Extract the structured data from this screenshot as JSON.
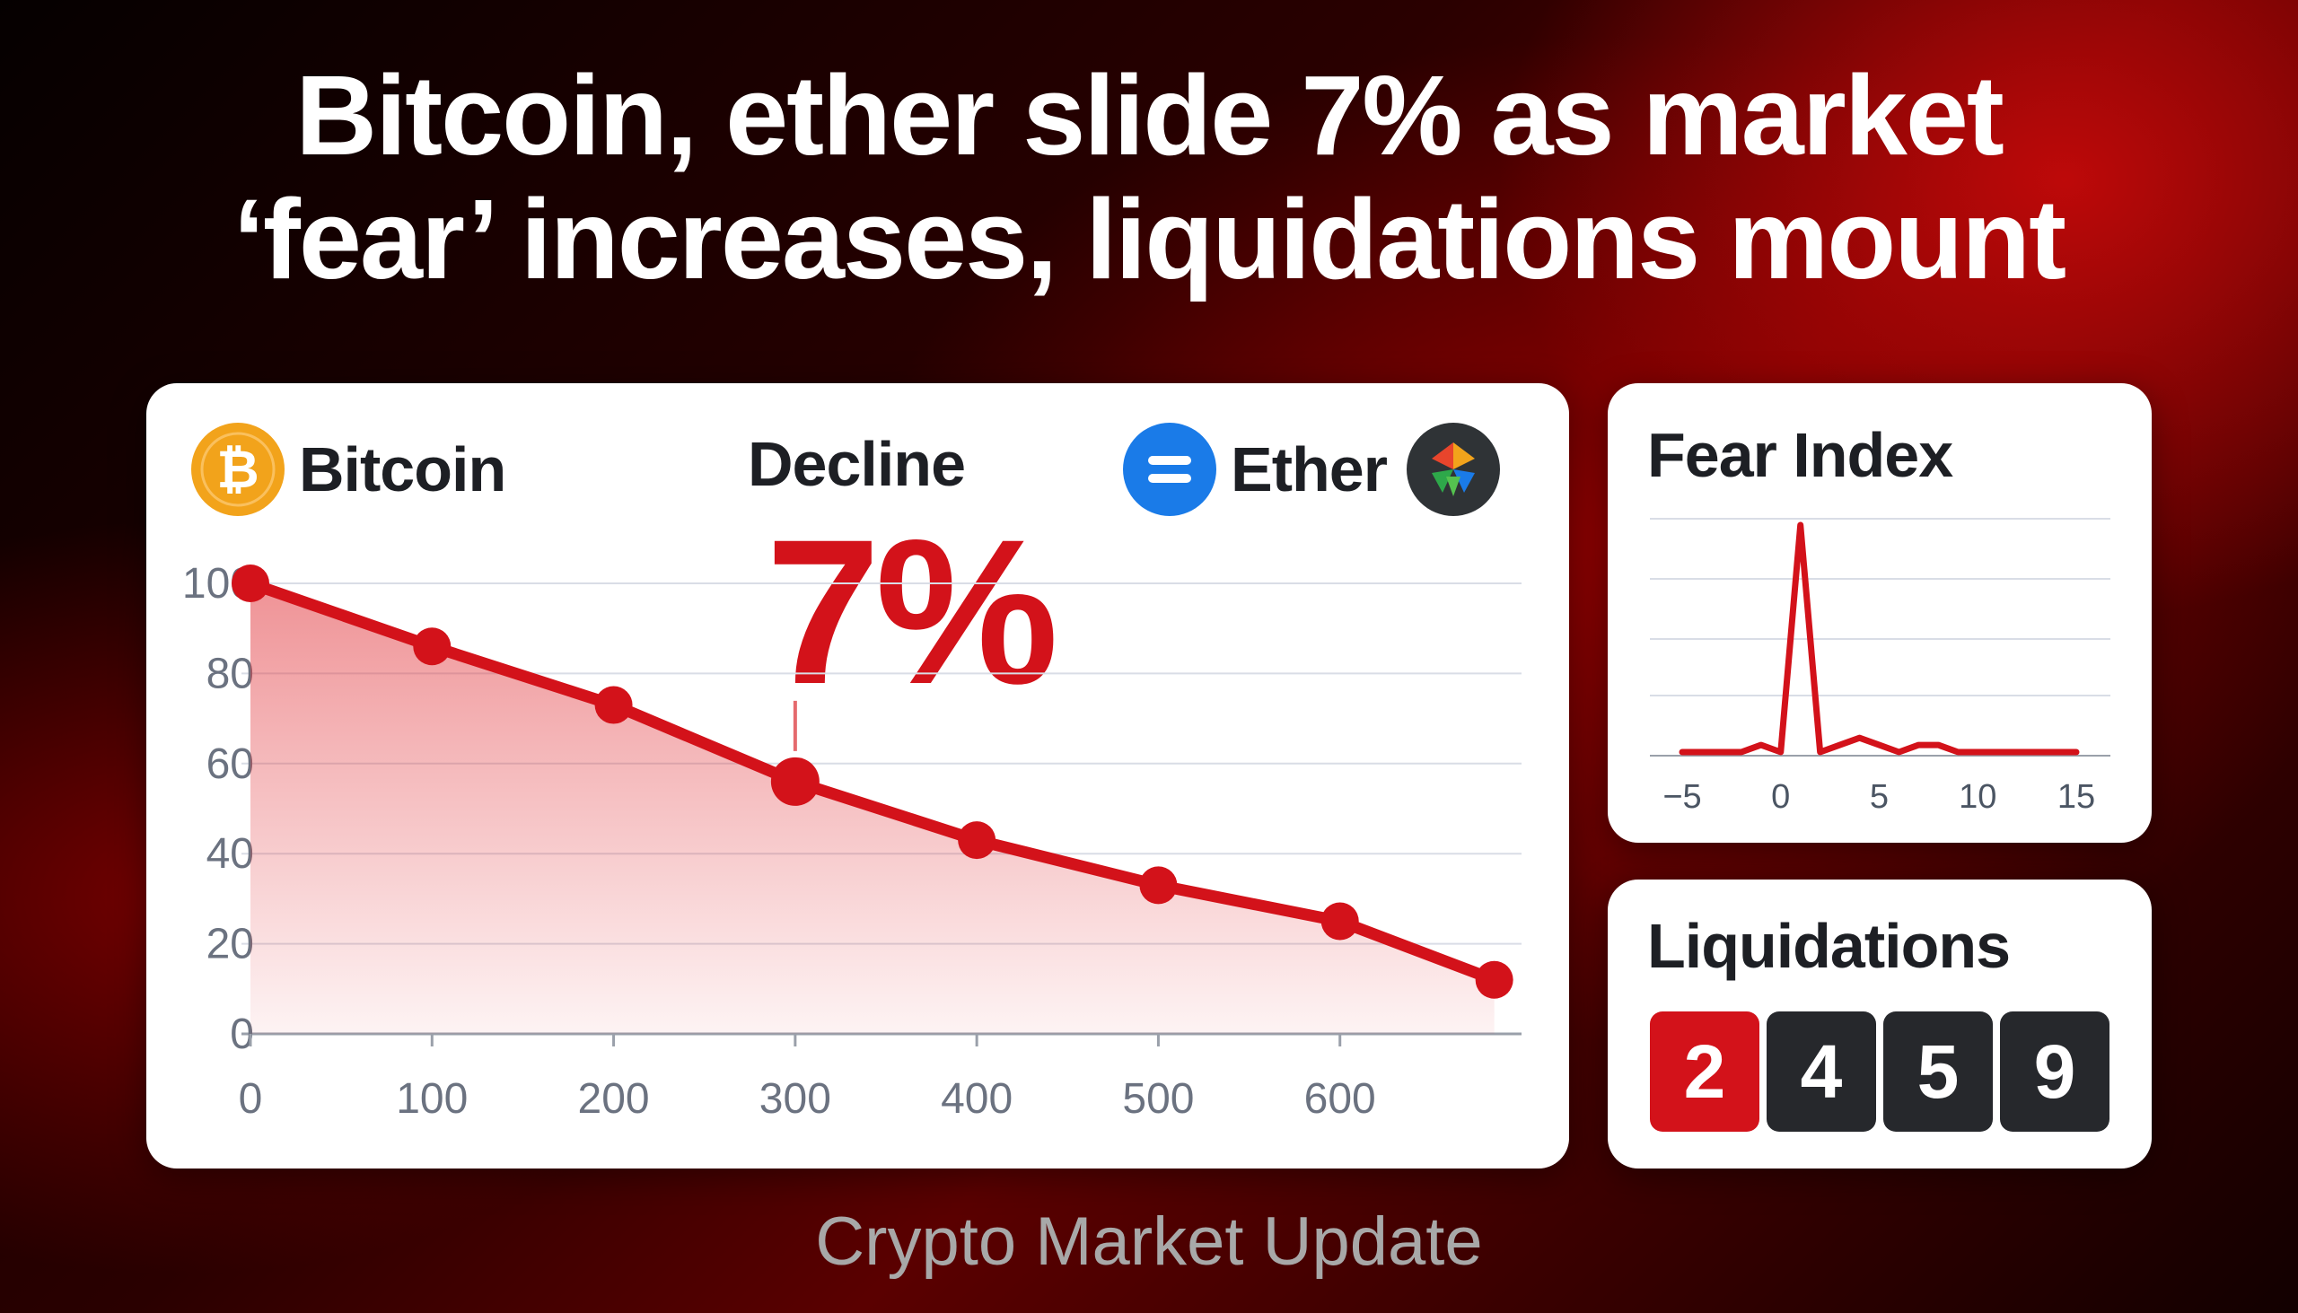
{
  "headline": {
    "line1": "Bitcoin, ether slide 7% as market",
    "line2": "‘fear’ increases, liquidations mount"
  },
  "main_card": {
    "bitcoin_label": "Bitcoin",
    "bitcoin_icon": "bitcoin-icon",
    "decline_label": "Decline",
    "decline_value": "7%",
    "ether_label": "Ether",
    "ether_icon": "ether-icon",
    "extra_icon": "app-logo-icon"
  },
  "fear_card": {
    "title": "Fear Index"
  },
  "liquidations_card": {
    "title": "Liquidations",
    "digits": [
      "2",
      "4",
      "5",
      "9"
    ]
  },
  "footer": "Crypto Market Update",
  "colors": {
    "accent": "#d3121a",
    "bitcoin": "#f2a31b",
    "ether": "#1a7be8",
    "dark": "#26282c"
  },
  "chart_data": [
    {
      "type": "area",
      "title": "",
      "xlabel": "",
      "ylabel": "",
      "x": [
        0,
        100,
        200,
        300,
        400,
        500,
        600,
        685
      ],
      "y": [
        100,
        86,
        73,
        56,
        43,
        33,
        25,
        12
      ],
      "highlight_index": 3,
      "xticks": [
        "0",
        "100",
        "200",
        "300",
        "400",
        "500",
        "600"
      ],
      "yticks": [
        "0",
        "20",
        "40",
        "60",
        "80",
        "100"
      ],
      "xlim": [
        0,
        700
      ],
      "ylim": [
        0,
        100
      ],
      "grid": true
    },
    {
      "type": "line",
      "title": "Fear Index",
      "x": [
        -5,
        -2,
        -1,
        0,
        1,
        2,
        3,
        4,
        5,
        6,
        7,
        8,
        9,
        10,
        15
      ],
      "y": [
        0,
        0,
        1,
        0,
        32,
        0,
        1,
        2,
        1,
        0,
        1,
        1,
        0,
        0,
        0
      ],
      "xticks": [
        "−5",
        "0",
        "5",
        "10",
        "15"
      ],
      "xlim": [
        -5,
        15
      ],
      "ylim": [
        0,
        32
      ],
      "grid": true
    }
  ]
}
